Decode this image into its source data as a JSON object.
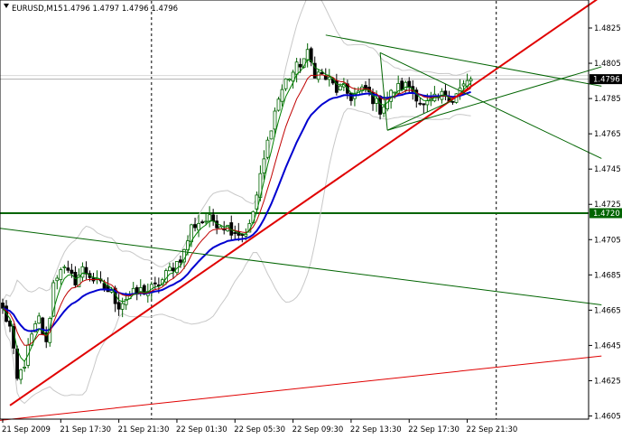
{
  "header": {
    "symbol_timeframe": "EURUSD,M15",
    "quote": "1.4796 1.4797 1.4796 1.4796"
  },
  "colors": {
    "up_candle": "#006400",
    "down_candle": "#000000",
    "ma_blue": "#0000d0",
    "ma_dark_red": "#c00000",
    "ma_green": "#008000",
    "bollinger": "#c8c8c8",
    "trend_red": "#e00000",
    "line_green": "#006400",
    "grid_dotted": "#000000",
    "bid_line": "#b0b0b0",
    "price_tag_bg": "#000000",
    "level_tag_bg": "#006400"
  },
  "chart_data": {
    "type": "candlestick",
    "symbol": "EURUSD",
    "timeframe": "M15",
    "y_ticks": [
      "1.4825",
      "1.4805",
      "1.4785",
      "1.4765",
      "1.4745",
      "1.4725",
      "1.4705",
      "1.4685",
      "1.4665",
      "1.4645",
      "1.4625",
      "1.4605"
    ],
    "y_tick_values": [
      1.4825,
      1.4805,
      1.4785,
      1.4765,
      1.4745,
      1.4725,
      1.4705,
      1.4685,
      1.4665,
      1.4645,
      1.4625,
      1.4605
    ],
    "ylim": [
      1.4601,
      1.4846
    ],
    "x_ticks": [
      "21 Sep 2009",
      "21 Sep 17:30",
      "21 Sep 21:30",
      "22 Sep 01:30",
      "22 Sep 05:30",
      "22 Sep 09:30",
      "22 Sep 13:30",
      "22 Sep 17:30",
      "22 Sep 21:30"
    ],
    "x_tick_index": [
      0,
      16,
      32,
      48,
      64,
      80,
      96,
      112,
      128
    ],
    "bar_count": 130,
    "current_price": "1.4796",
    "current_price_value": 1.4796,
    "horizontal_level": "1.4720",
    "horizontal_level_value": 1.472,
    "vertical_marker_index": [
      41,
      136
    ],
    "close_anchors": [
      [
        0,
        1.4665
      ],
      [
        2,
        1.4655
      ],
      [
        4,
        1.4625
      ],
      [
        6,
        1.4635
      ],
      [
        8,
        1.465
      ],
      [
        10,
        1.466
      ],
      [
        12,
        1.4645
      ],
      [
        14,
        1.468
      ],
      [
        16,
        1.469
      ],
      [
        18,
        1.4685
      ],
      [
        20,
        1.4682
      ],
      [
        22,
        1.4688
      ],
      [
        24,
        1.4685
      ],
      [
        26,
        1.468
      ],
      [
        28,
        1.4678
      ],
      [
        30,
        1.4674
      ],
      [
        32,
        1.4668
      ],
      [
        34,
        1.4672
      ],
      [
        36,
        1.4674
      ],
      [
        38,
        1.4676
      ],
      [
        40,
        1.4676
      ],
      [
        42,
        1.4678
      ],
      [
        44,
        1.4682
      ],
      [
        46,
        1.4688
      ],
      [
        48,
        1.4692
      ],
      [
        50,
        1.4698
      ],
      [
        52,
        1.4712
      ],
      [
        54,
        1.4715
      ],
      [
        56,
        1.4716
      ],
      [
        58,
        1.4716
      ],
      [
        60,
        1.4714
      ],
      [
        62,
        1.4712
      ],
      [
        64,
        1.471
      ],
      [
        66,
        1.4708
      ],
      [
        68,
        1.4712
      ],
      [
        70,
        1.473
      ],
      [
        72,
        1.475
      ],
      [
        74,
        1.477
      ],
      [
        76,
        1.4785
      ],
      [
        78,
        1.4795
      ],
      [
        80,
        1.48
      ],
      [
        82,
        1.4805
      ],
      [
        84,
        1.481
      ],
      [
        86,
        1.48
      ],
      [
        88,
        1.4798
      ],
      [
        90,
        1.4795
      ],
      [
        92,
        1.479
      ],
      [
        94,
        1.479
      ],
      [
        96,
        1.4786
      ],
      [
        98,
        1.4788
      ],
      [
        100,
        1.479
      ],
      [
        102,
        1.4785
      ],
      [
        104,
        1.4779
      ],
      [
        106,
        1.4785
      ],
      [
        108,
        1.479
      ],
      [
        110,
        1.4792
      ],
      [
        112,
        1.4792
      ],
      [
        114,
        1.4787
      ],
      [
        116,
        1.478
      ],
      [
        118,
        1.4783
      ],
      [
        120,
        1.4785
      ],
      [
        122,
        1.4788
      ],
      [
        124,
        1.4785
      ],
      [
        126,
        1.479
      ],
      [
        128,
        1.4794
      ],
      [
        129,
        1.4796
      ]
    ],
    "trend_lines": [
      {
        "color": "red",
        "width": 2,
        "from": [
          2,
          1.4611
        ],
        "to": [
          165,
          1.4843
        ]
      },
      {
        "color": "red",
        "width": 1,
        "from": [
          -3,
          1.4602
        ],
        "to": [
          165,
          1.4639
        ]
      },
      {
        "color": "green",
        "width": 1,
        "from": [
          -3,
          1.4712
        ],
        "to": [
          165,
          1.4668
        ]
      },
      {
        "color": "green",
        "width": 1,
        "from": [
          89,
          1.4821
        ],
        "to": [
          165,
          1.4792
        ]
      },
      {
        "color": "green",
        "width": 1,
        "from": [
          104,
          1.4811
        ],
        "to": [
          165,
          1.4751
        ]
      },
      {
        "color": "green",
        "width": 1,
        "from": [
          106,
          1.4767
        ],
        "to": [
          165,
          1.4803
        ]
      },
      {
        "color": "green",
        "width": 1,
        "from": [
          104,
          1.4811
        ],
        "to": [
          106,
          1.4767
        ]
      },
      {
        "color": "green",
        "width": 1,
        "from": [
          106,
          1.4767
        ],
        "to": [
          124,
          1.4784
        ]
      }
    ]
  }
}
